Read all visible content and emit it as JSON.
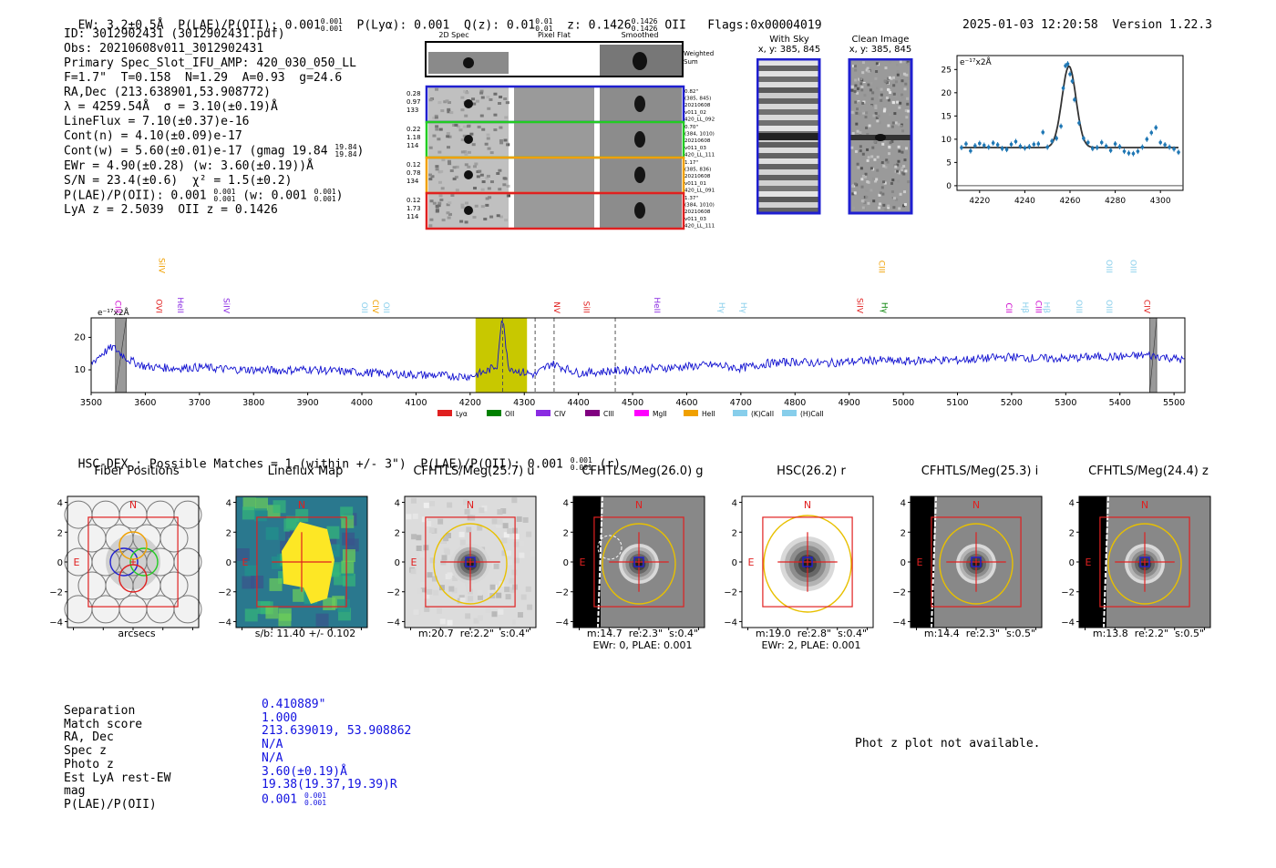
{
  "header": {
    "ew": "EW: 3.2±0.5Å",
    "plae_label": "P(LAE)/P(OII): 0.001",
    "plae_hi": "0.001",
    "plae_lo": "0.001",
    "plya": "P(Lyα): 0.001",
    "qz_label": "Q(z): 0.01",
    "qz_hi": "0.01",
    "qz_lo": "0.01",
    "z_label": "z: 0.1426",
    "z_hi": "0.1426",
    "z_lo": "0.1426",
    "z_line": "OII",
    "flags": "Flags:0x00004019",
    "timestamp": "2025-01-03 12:20:58",
    "version": "Version 1.22.3"
  },
  "info": {
    "lines": [
      "ID: 3012902431 (3012902431.pdf)",
      "Obs: 20210608v011_3012902431",
      "Primary Spec_Slot_IFU_AMP: 420_030_050_LL",
      "F=1.7\"  T=0.158  N=1.29  A=0.93  g=24.6",
      "RA,Dec (213.638901,53.908772)",
      "λ = 4259.54Å  σ = 3.10(±0.19)Å",
      "LineFlux = 7.10(±0.37)e-16",
      "Cont(n) = 4.10(±0.09)e-17",
      "Cont(w) = 5.60(±0.01)e-17 (gmag 19.84",
      "EWr = 4.90(±0.28) (w: 3.60(±0.19))Å",
      "S/N = 23.4(±0.6)  χ² = 1.5(±0.2)",
      "P(LAE)/P(OII): 0.001",
      "LyA z = 2.5039  OII z = 0.1426"
    ],
    "gmag_hi": "19.84",
    "gmag_lo": "19.84",
    "plae_tail": "(w: 0.001",
    "plae_hi": "0.001",
    "plae_lo": "0.001"
  },
  "cutouts": {
    "col_headers": [
      "2D Spec",
      "Pixel Flat",
      "Smoothed"
    ],
    "weighted_sum": "Weighted\nSum",
    "rows": [
      {
        "left": [
          "0.28",
          "0.97",
          "133"
        ],
        "right": [
          "0.82\"",
          "(385, 845)",
          "20210608",
          "v011_02",
          "420_LL_092"
        ],
        "color": "#1f1fd0"
      },
      {
        "left": [
          "0.22",
          "1.18",
          "114"
        ],
        "right": [
          "0.70\"",
          "(384, 1010)",
          "20210608",
          "v011_03",
          "420_LL_111"
        ],
        "color": "#22cc22"
      },
      {
        "left": [
          "0.12",
          "0.78",
          "134"
        ],
        "right": [
          "1.17\"",
          "(385, 836)",
          "20210608",
          "v011_01",
          "420_LL_091"
        ],
        "color": "#f0a000"
      },
      {
        "left": [
          "0.12",
          "1.73",
          "114"
        ],
        "right": [
          "1.37\"",
          "(384, 1010)",
          "20210608",
          "v011_03",
          "420_LL_111"
        ],
        "color": "#e02020"
      }
    ],
    "with_sky_title": "With Sky",
    "with_sky_xy": "x, y: 385, 845",
    "clean_title": "Clean Image",
    "clean_xy": "x, y: 385, 845"
  },
  "chart_data": [
    {
      "type": "scatter",
      "name": "line-fit",
      "unit_label": "e⁻¹⁷x2Å",
      "xlim": [
        4210,
        4310
      ],
      "ylim": [
        -1,
        28
      ],
      "xticks": [
        4220,
        4240,
        4260,
        4280,
        4300
      ],
      "yticks": [
        0,
        5,
        10,
        15,
        20,
        25
      ],
      "x": [
        4212,
        4214,
        4216,
        4218,
        4220,
        4222,
        4224,
        4226,
        4228,
        4230,
        4232,
        4234,
        4236,
        4238,
        4240,
        4242,
        4244,
        4246,
        4248,
        4250,
        4252,
        4254,
        4256,
        4257,
        4258,
        4259,
        4260,
        4261,
        4262,
        4264,
        4266,
        4268,
        4270,
        4272,
        4274,
        4276,
        4278,
        4280,
        4282,
        4284,
        4286,
        4288,
        4290,
        4292,
        4294,
        4296,
        4298,
        4300,
        4302,
        4304,
        4306,
        4308
      ],
      "y": [
        8.2,
        9.0,
        7.5,
        8.6,
        9.1,
        8.7,
        8.3,
        9.2,
        8.8,
        8.0,
        7.8,
        8.9,
        9.5,
        8.5,
        8.1,
        8.4,
        8.9,
        9.0,
        11.5,
        8.3,
        9.6,
        10.2,
        12.8,
        21.0,
        25.8,
        26.2,
        24.0,
        22.5,
        18.5,
        13.5,
        10.2,
        9.3,
        8.0,
        8.2,
        9.3,
        8.5,
        7.6,
        9.0,
        8.4,
        7.4,
        7.0,
        6.9,
        7.4,
        8.3,
        10.0,
        11.4,
        12.5,
        9.3,
        8.8,
        8.3,
        7.9,
        7.2
      ],
      "fit_continuum": 8.2,
      "fit_peak_x": 4259.54,
      "fit_amp": 17.5,
      "fit_sigma": 3.1
    },
    {
      "type": "line",
      "name": "full-spectrum",
      "unit_label": "e⁻¹⁷x2Å",
      "xlim": [
        3500,
        5520
      ],
      "ylim": [
        3,
        26
      ],
      "xticks": [
        3500,
        3600,
        3700,
        3800,
        3900,
        4000,
        4100,
        4200,
        4300,
        4400,
        4500,
        4600,
        4700,
        4800,
        4900,
        5000,
        5100,
        5200,
        5300,
        5400,
        5500
      ],
      "yticks": [
        10,
        20
      ],
      "anchors_x": [
        3500,
        3520,
        3540,
        3555,
        3570,
        3600,
        3650,
        3700,
        3750,
        3800,
        3850,
        3900,
        3950,
        4000,
        4050,
        4100,
        4150,
        4200,
        4230,
        4250,
        4258,
        4262,
        4270,
        4290,
        4320,
        4350,
        4400,
        4450,
        4500,
        4550,
        4600,
        4650,
        4700,
        4750,
        4800,
        4850,
        4900,
        4950,
        5000,
        5050,
        5100,
        5150,
        5200,
        5250,
        5300,
        5350,
        5400,
        5450,
        5480,
        5500,
        5520
      ],
      "anchors_y": [
        12,
        15,
        17,
        15,
        13,
        11,
        10.5,
        10.8,
        10.2,
        10.0,
        9.8,
        10.2,
        9.6,
        9.2,
        8.8,
        8.5,
        8.2,
        8.0,
        9.5,
        11.5,
        25,
        24,
        11,
        9.5,
        8.5,
        12,
        9,
        9.5,
        10,
        10.5,
        11,
        11.5,
        10.5,
        12,
        12.5,
        12,
        12.5,
        13,
        12.5,
        13,
        13,
        13.5,
        14,
        13.5,
        13.5,
        14,
        14,
        14.5,
        14,
        13.5,
        13
      ],
      "highlight_range": [
        4210,
        4305
      ],
      "dashed_lines": [
        4260,
        4320,
        4355,
        4468
      ],
      "masked_ranges": [
        [
          3545,
          3565
        ],
        [
          5455,
          5468
        ]
      ],
      "line_labels": [
        {
          "x": 3545,
          "label": "CIII",
          "color": "#cc00cc",
          "row": 2
        },
        {
          "x": 3620,
          "label": "OVI",
          "color": "#e02020",
          "row": 2
        },
        {
          "x": 3625,
          "label": "SiIV",
          "color": "#f0a000",
          "row": 0
        },
        {
          "x": 3660,
          "label": "HeII",
          "color": "#8a2be2",
          "row": 2
        },
        {
          "x": 3745,
          "label": "SiIV",
          "color": "#8a2be2",
          "row": 2
        },
        {
          "x": 4000,
          "label": "OII",
          "color": "#87ceeb",
          "row": 2
        },
        {
          "x": 4020,
          "label": "CIV",
          "color": "#f0a000",
          "row": 2
        },
        {
          "x": 4040,
          "label": "OII",
          "color": "#87ceeb",
          "row": 2
        },
        {
          "x": 4355,
          "label": "NV",
          "color": "#e02020",
          "row": 2
        },
        {
          "x": 4410,
          "label": "SiII",
          "color": "#e02020",
          "row": 2
        },
        {
          "x": 4540,
          "label": "HeII",
          "color": "#8a2be2",
          "row": 2
        },
        {
          "x": 4660,
          "label": "Hγ",
          "color": "#87ceeb",
          "row": 2
        },
        {
          "x": 4700,
          "label": "Hγ",
          "color": "#87ceeb",
          "row": 2
        },
        {
          "x": 4915,
          "label": "SiIV",
          "color": "#e02020",
          "row": 2
        },
        {
          "x": 4955,
          "label": "CIII",
          "color": "#f0a000",
          "row": 0
        },
        {
          "x": 4960,
          "label": "Hγ",
          "color": "#008000",
          "row": 2
        },
        {
          "x": 5190,
          "label": "CII",
          "color": "#cc00cc",
          "row": 2
        },
        {
          "x": 5220,
          "label": "Hβ",
          "color": "#87ceeb",
          "row": 2
        },
        {
          "x": 5245,
          "label": "CIII",
          "color": "#cc00cc",
          "row": 2
        },
        {
          "x": 5260,
          "label": "Hβ",
          "color": "#87ceeb",
          "row": 2
        },
        {
          "x": 5320,
          "label": "OIII",
          "color": "#87ceeb",
          "row": 2
        },
        {
          "x": 5375,
          "label": "OIII",
          "color": "#87ceeb",
          "row": 0
        },
        {
          "x": 5375,
          "label": "OIII",
          "color": "#87ceeb",
          "row": 2
        },
        {
          "x": 5420,
          "label": "OIII",
          "color": "#87ceeb",
          "row": 0
        },
        {
          "x": 5445,
          "label": "CIV",
          "color": "#e02020",
          "row": 2
        }
      ],
      "legend": [
        {
          "label": "Lyα",
          "color": "#e02020"
        },
        {
          "label": "OII",
          "color": "#008000"
        },
        {
          "label": "CIV",
          "color": "#8a2be2"
        },
        {
          "label": "CIII",
          "color": "#800080"
        },
        {
          "label": "MgII",
          "color": "#ff00ff"
        },
        {
          "label": "HeII",
          "color": "#f0a000"
        },
        {
          "label": "(K)CaII",
          "color": "#87ceeb"
        },
        {
          "label": "(H)CaII",
          "color": "#87ceeb"
        }
      ]
    }
  ],
  "hsc": {
    "label": "HSC-DEX : Possible Matches = 1 (within +/- 3\")  P(LAE)/P(OII): 0.001",
    "frac_hi": "0.001",
    "frac_lo": "0.001",
    "suffix": "(r)"
  },
  "imaging": {
    "ticks": [
      "−4",
      "−2",
      "0",
      "2",
      "4"
    ],
    "panels": [
      {
        "title": "Fiber Positions",
        "caption": "arcsecs",
        "type": "fiber"
      },
      {
        "title": "Lineflux Map",
        "caption": "s/b: 11.40 +/- 0.102",
        "type": "lineflux"
      },
      {
        "title": "CFHTLS/Meg(25.7) u",
        "caption": "m:20.7  re:2.2\"  s:0.4\"",
        "type": "grey"
      },
      {
        "title": "CFHTLS/Meg(26.0) g",
        "caption": "m:14.7  re:2.3\"  s:0.4\"\nEWr: 0, PLAE: 0.001",
        "type": "edge"
      },
      {
        "title": "HSC(26.2) r",
        "caption": "m:19.0  re:2.8\"  s:0.4\"\nEWr: 2, PLAE: 0.001",
        "type": "hsc"
      },
      {
        "title": "CFHTLS/Meg(25.3) i",
        "caption": "m:14.4  re:2.3\"  s:0.5\"",
        "type": "edge2"
      },
      {
        "title": "CFHTLS/Meg(24.4) z",
        "caption": "m:13.8  re:2.2\"  s:0.5\"",
        "type": "edge3"
      }
    ],
    "north": "N",
    "east": "E"
  },
  "match": {
    "labels": [
      "Separation",
      "Match score",
      "RA, Dec",
      "Spec z",
      "Photo z",
      "Est LyA rest-EW",
      "mag",
      "P(LAE)/P(OII)"
    ],
    "values": [
      "0.410889\"",
      "1.000",
      "213.639019, 53.908862",
      "N/A",
      "N/A",
      "3.60(±0.19)Å",
      "19.38(19.37,19.39)R",
      "0.001"
    ],
    "plae_hi": "0.001",
    "plae_lo": "0.001",
    "photz_note": "Phot z plot not available."
  },
  "colors": {
    "spectrum": "#1010d0",
    "fit_points": "#1f77b4",
    "fit_line": "#333333",
    "highlight": "#c8c800"
  }
}
